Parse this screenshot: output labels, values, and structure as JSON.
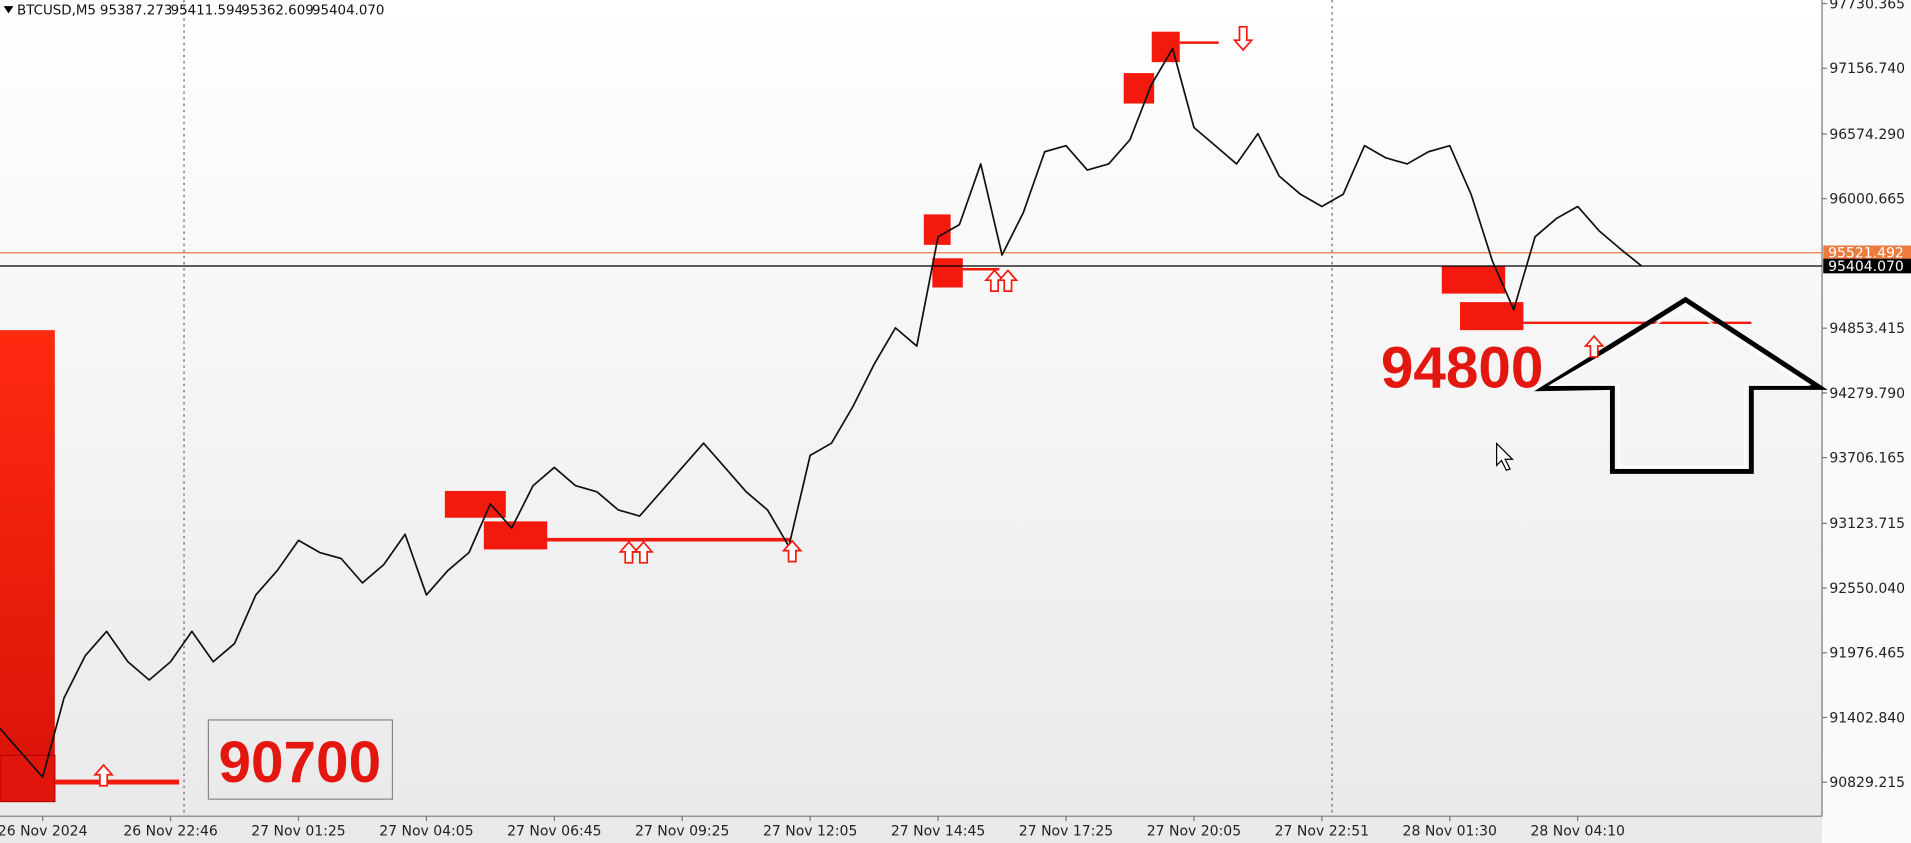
{
  "header": {
    "symbol": "BTCUSD,M5",
    "quotes": [
      "95387.273",
      "95411.594",
      "95362.609",
      "95404.070"
    ]
  },
  "chart_data": {
    "type": "line",
    "categories": [
      null,
      null,
      "26 Nov 2024",
      null,
      null,
      null,
      null,
      null,
      "26 Nov 22:46",
      null,
      null,
      null,
      null,
      null,
      "27 Nov 01:25",
      null,
      null,
      null,
      null,
      null,
      "27 Nov 04:05",
      null,
      null,
      null,
      null,
      null,
      "27 Nov 06:45",
      null,
      null,
      null,
      null,
      null,
      "27 Nov 09:25",
      null,
      null,
      null,
      null,
      null,
      "27 Nov 12:05",
      null,
      null,
      null,
      null,
      null,
      "27 Nov 14:45",
      null,
      null,
      null,
      null,
      null,
      "27 Nov 17:25",
      null,
      null,
      null,
      null,
      null,
      "27 Nov 20:05",
      null,
      null,
      null,
      null,
      null,
      "27 Nov 22:51",
      null,
      null,
      null,
      null,
      null,
      "28 Nov 01:30",
      null,
      null,
      null,
      null,
      null,
      "28 Nov 04:10",
      null,
      null,
      null
    ],
    "series": [
      {
        "color": "#111111",
        "values": [
          91305,
          91090,
          90874,
          91574,
          91951,
          92166,
          91897,
          91735,
          91897,
          92166,
          91897,
          92058,
          92489,
          92704,
          92973,
          92865,
          92812,
          92596,
          92758,
          93027,
          92489,
          92704,
          92865,
          93296,
          93081,
          93457,
          93619,
          93457,
          93403,
          93242,
          93188,
          93403,
          93619,
          93834,
          93619,
          93403,
          93242,
          92919,
          93726,
          93834,
          94157,
          94533,
          94856,
          94695,
          95663,
          95771,
          96309,
          95502,
          95879,
          96417,
          96471,
          96255,
          96309,
          96524,
          97009,
          97332,
          96632,
          96471,
          96309,
          96578,
          96201,
          96040,
          95932,
          96040,
          96471,
          96363,
          96309,
          96417,
          96471,
          96040,
          95448,
          95018,
          95663,
          95825,
          95932,
          95717,
          95556,
          95404.07
        ]
      }
    ],
    "ylim": [
      90528,
      97762
    ],
    "yticks": [
      97730.365,
      {
        "value": 97156.74,
        "label": "97156.740"
      },
      {
        "value": 96574.29,
        "label": "96574.290"
      },
      96000.665,
      94853.415,
      {
        "value": 94279.79,
        "label": "94279.790"
      },
      93706.165,
      93123.715,
      {
        "value": 92550.04,
        "label": "92550.040"
      },
      91976.465,
      {
        "value": 91402.84,
        "label": "91402.840"
      },
      90829.215
    ],
    "levels": [
      {
        "value": 95521.492,
        "label": "95521.492",
        "color": "#f07b3f"
      },
      {
        "value": 95404.07,
        "label": "95404.070",
        "color": "#000000"
      }
    ],
    "annotations": [
      "94800",
      "90700"
    ],
    "grid": false
  }
}
